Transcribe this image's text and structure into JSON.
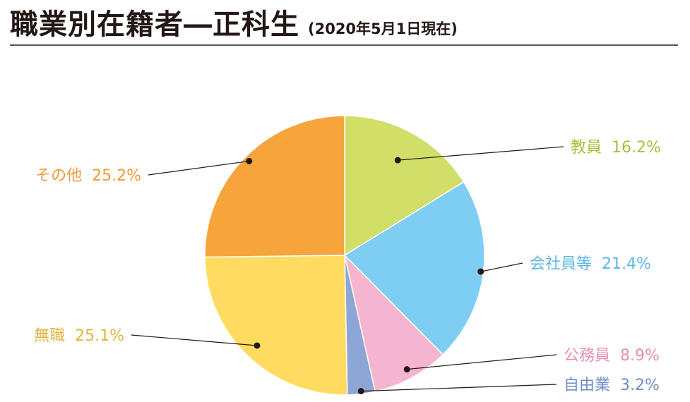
{
  "header": {
    "title": "職業別在籍者―正科生",
    "subtitle": "(2020年5月1日現在)"
  },
  "chart_data": {
    "type": "pie",
    "title": "職業別在籍者―正科生",
    "subtitle": "(2020年5月1日現在)",
    "unit": "%",
    "slices": [
      {
        "label": "教員",
        "value": 16.2,
        "value_label": "16.2%",
        "color": "#D1DF68"
      },
      {
        "label": "会社員等",
        "value": 21.4,
        "value_label": "21.4%",
        "color": "#7ECEF4"
      },
      {
        "label": "公務員",
        "value": 8.9,
        "value_label": "8.9%",
        "color": "#F5B4D0"
      },
      {
        "label": "自由業",
        "value": 3.2,
        "value_label": "3.2%",
        "color": "#8DA6D6"
      },
      {
        "label": "無職",
        "value": 25.1,
        "value_label": "25.1%",
        "color": "#FFDC5F"
      },
      {
        "label": "その他",
        "value": 25.2,
        "value_label": "25.2%",
        "color": "#F5A53C"
      }
    ],
    "label_colors": {
      "教員": "#A8BF3C",
      "会社員等": "#5FB8E6",
      "公務員": "#E98DB5",
      "自由業": "#6F8CC6",
      "無職": "#E3B33C",
      "その他": "#EE9A3A"
    }
  }
}
